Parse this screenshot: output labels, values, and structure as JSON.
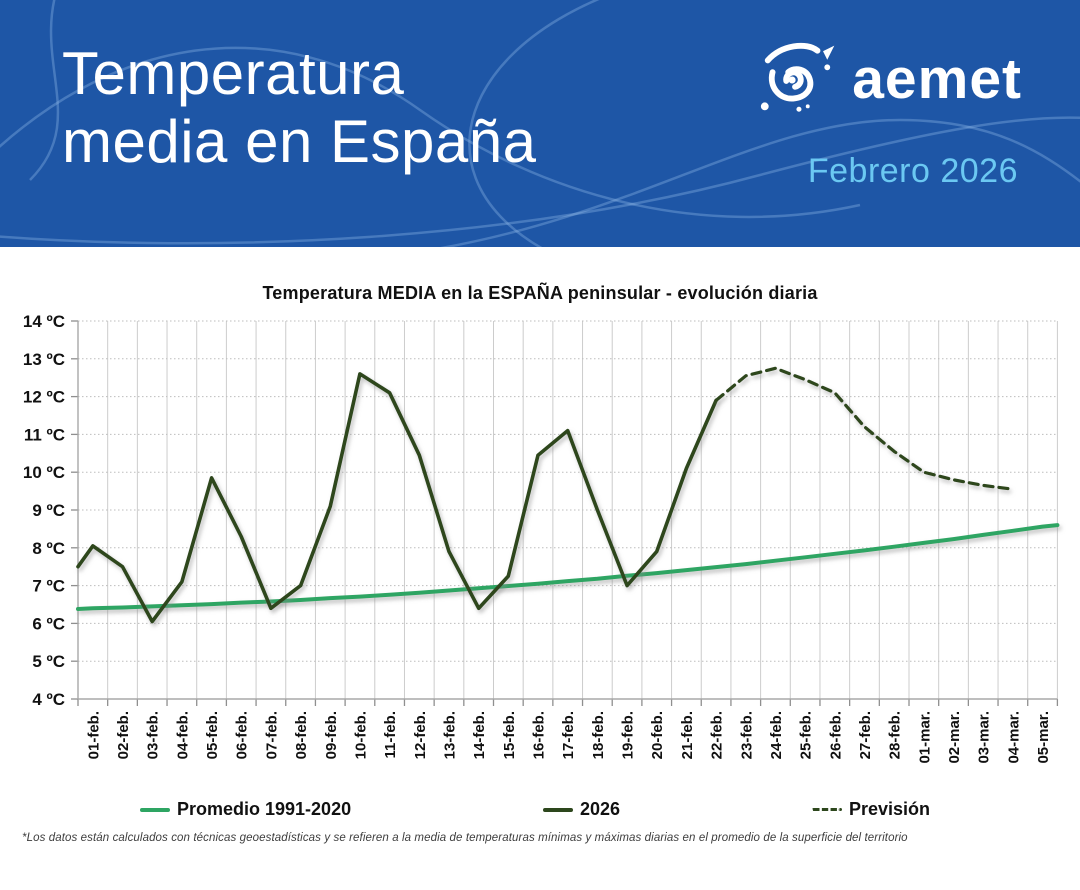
{
  "header": {
    "title_line1": "Temperatura",
    "title_line2": "media en España",
    "logo_text": "aemet",
    "subtitle": "Febrero 2026",
    "colors": {
      "background": "#1e56a6",
      "subtitle": "#6bc8f2"
    }
  },
  "chart": {
    "footnote": "*Los datos están calculados con técnicas geoestadísticas y se refieren a la media de temperaturas mínimas y máximas diarias en el promedio de la superficie del territorio"
  },
  "chart_data": {
    "type": "line",
    "title": "Temperatura MEDIA en la ESPAÑA peninsular - evolución diaria",
    "xlabel": "",
    "ylabel": "",
    "ylim": [
      4,
      14
    ],
    "grid": true,
    "legend_position": "bottom",
    "categories": [
      "01-feb.",
      "02-feb.",
      "03-feb.",
      "04-feb.",
      "05-feb.",
      "06-feb.",
      "07-feb.",
      "08-feb.",
      "09-feb.",
      "10-feb.",
      "11-feb.",
      "12-feb.",
      "13-feb.",
      "14-feb.",
      "15-feb.",
      "16-feb.",
      "17-feb.",
      "18-feb.",
      "19-feb.",
      "20-feb.",
      "21-feb.",
      "22-feb.",
      "23-feb.",
      "24-feb.",
      "25-feb.",
      "26-feb.",
      "27-feb.",
      "28-feb.",
      "01-mar.",
      "02-mar.",
      "03-mar.",
      "04-mar.",
      "05-mar."
    ],
    "y_ticks": {
      "values": [
        4,
        5,
        6,
        7,
        8,
        9,
        10,
        11,
        12,
        13,
        14
      ],
      "labels": [
        "4 ºC",
        "5 ºC",
        "6 ºC",
        "7 ºC",
        "8 ºC",
        "9 ºC",
        "10 ºC",
        "11 ºC",
        "12 ºC",
        "13 ºC",
        "14 ºC"
      ]
    },
    "series": [
      {
        "name": "Promedio 1991-2020",
        "style": "solid",
        "color": "#2ea563",
        "width": 4,
        "edge_values": [
          6.38,
          8.6
        ],
        "values": [
          6.4,
          6.42,
          6.45,
          6.48,
          6.51,
          6.55,
          6.58,
          6.62,
          6.67,
          6.71,
          6.76,
          6.81,
          6.87,
          6.93,
          6.99,
          7.05,
          7.12,
          7.18,
          7.26,
          7.33,
          7.41,
          7.49,
          7.57,
          7.66,
          7.75,
          7.84,
          7.93,
          8.03,
          8.13,
          8.23,
          8.34,
          8.45,
          8.56
        ]
      },
      {
        "name": "2026",
        "style": "solid",
        "color": "#2d471d",
        "width": 3.6,
        "axis_lead": 7.5,
        "values": [
          8.05,
          7.5,
          6.05,
          7.1,
          9.85,
          8.3,
          6.4,
          7.0,
          9.1,
          12.6,
          12.1,
          10.45,
          7.9,
          6.4,
          7.25,
          10.45,
          11.1,
          9.0,
          7.0,
          7.9,
          10.1,
          11.9,
          null,
          null,
          null,
          null,
          null,
          null,
          null,
          null,
          null,
          null,
          null
        ]
      },
      {
        "name": "Previsión",
        "style": "dashed",
        "color": "#2d471d",
        "width": 3.2,
        "values": [
          null,
          null,
          null,
          null,
          null,
          null,
          null,
          null,
          null,
          null,
          null,
          null,
          null,
          null,
          null,
          null,
          null,
          null,
          null,
          null,
          null,
          11.9,
          12.55,
          12.75,
          12.45,
          12.1,
          11.2,
          10.55,
          10.0,
          9.8,
          9.65,
          9.55,
          null
        ]
      }
    ]
  }
}
